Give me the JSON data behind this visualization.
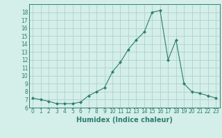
{
  "x": [
    0,
    1,
    2,
    3,
    4,
    5,
    6,
    7,
    8,
    9,
    10,
    11,
    12,
    13,
    14,
    15,
    16,
    17,
    18,
    19,
    20,
    21,
    22,
    23
  ],
  "y": [
    7.2,
    7.0,
    6.8,
    6.5,
    6.5,
    6.5,
    6.7,
    7.5,
    8.0,
    8.5,
    10.5,
    11.7,
    13.3,
    14.5,
    15.5,
    18.0,
    18.2,
    12.0,
    14.5,
    9.0,
    8.0,
    7.8,
    7.5,
    7.2
  ],
  "xlabel": "Humidex (Indice chaleur)",
  "ylim": [
    6,
    19
  ],
  "xlim": [
    -0.5,
    23.5
  ],
  "yticks": [
    6,
    7,
    8,
    9,
    10,
    11,
    12,
    13,
    14,
    15,
    16,
    17,
    18
  ],
  "xticks": [
    0,
    1,
    2,
    3,
    4,
    5,
    6,
    7,
    8,
    9,
    10,
    11,
    12,
    13,
    14,
    15,
    16,
    17,
    18,
    19,
    20,
    21,
    22,
    23
  ],
  "line_color": "#2e7d6e",
  "marker": "D",
  "marker_size": 2,
  "bg_color": "#d4eeea",
  "grid_color": "#aaccc6",
  "tick_color": "#2e7d6e",
  "label_color": "#2e7d6e",
  "xlabel_fontsize": 7,
  "tick_fontsize": 5.5
}
